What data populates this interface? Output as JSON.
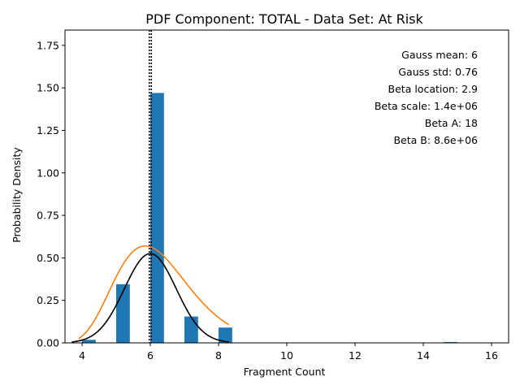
{
  "chart_data": {
    "type": "bar",
    "title": "PDF Component: TOTAL - Data Set: At Risk",
    "xlabel": "Fragment Count",
    "ylabel": "Probability Density",
    "xlim": [
      3.5,
      16.5
    ],
    "ylim": [
      0,
      1.84
    ],
    "xticks": [
      4,
      6,
      8,
      10,
      12,
      14,
      16
    ],
    "yticks": [
      "0.00",
      "0.25",
      "0.50",
      "0.75",
      "1.00",
      "1.25",
      "1.50",
      "1.75"
    ],
    "bars": {
      "color": "#1f77b4",
      "width": 0.4,
      "x": [
        4.2,
        5.2,
        6.2,
        7.2,
        8.2,
        14.8
      ],
      "values": [
        0.018,
        0.345,
        1.47,
        0.155,
        0.09,
        0.005
      ]
    },
    "series": [
      {
        "type": "gauss",
        "color": "#000000",
        "mean": 6,
        "std": 0.76,
        "x_range": [
          3.7,
          8.3
        ]
      },
      {
        "type": "beta",
        "color": "#ff7f0e",
        "mode": 5.85,
        "peak": 0.57,
        "x_range": [
          3.9,
          8.3
        ]
      }
    ],
    "vlines": [
      {
        "x": 5.97,
        "style": "dotted",
        "color": "#000000"
      },
      {
        "x": 6.03,
        "style": "dotted",
        "color": "#000000"
      }
    ],
    "annotations": [
      "Gauss mean: 6",
      "Gauss std: 0.76",
      "Beta location: 2.9",
      "Beta scale: 1.4e+06",
      "Beta A: 18",
      "Beta B: 8.6e+06"
    ]
  }
}
